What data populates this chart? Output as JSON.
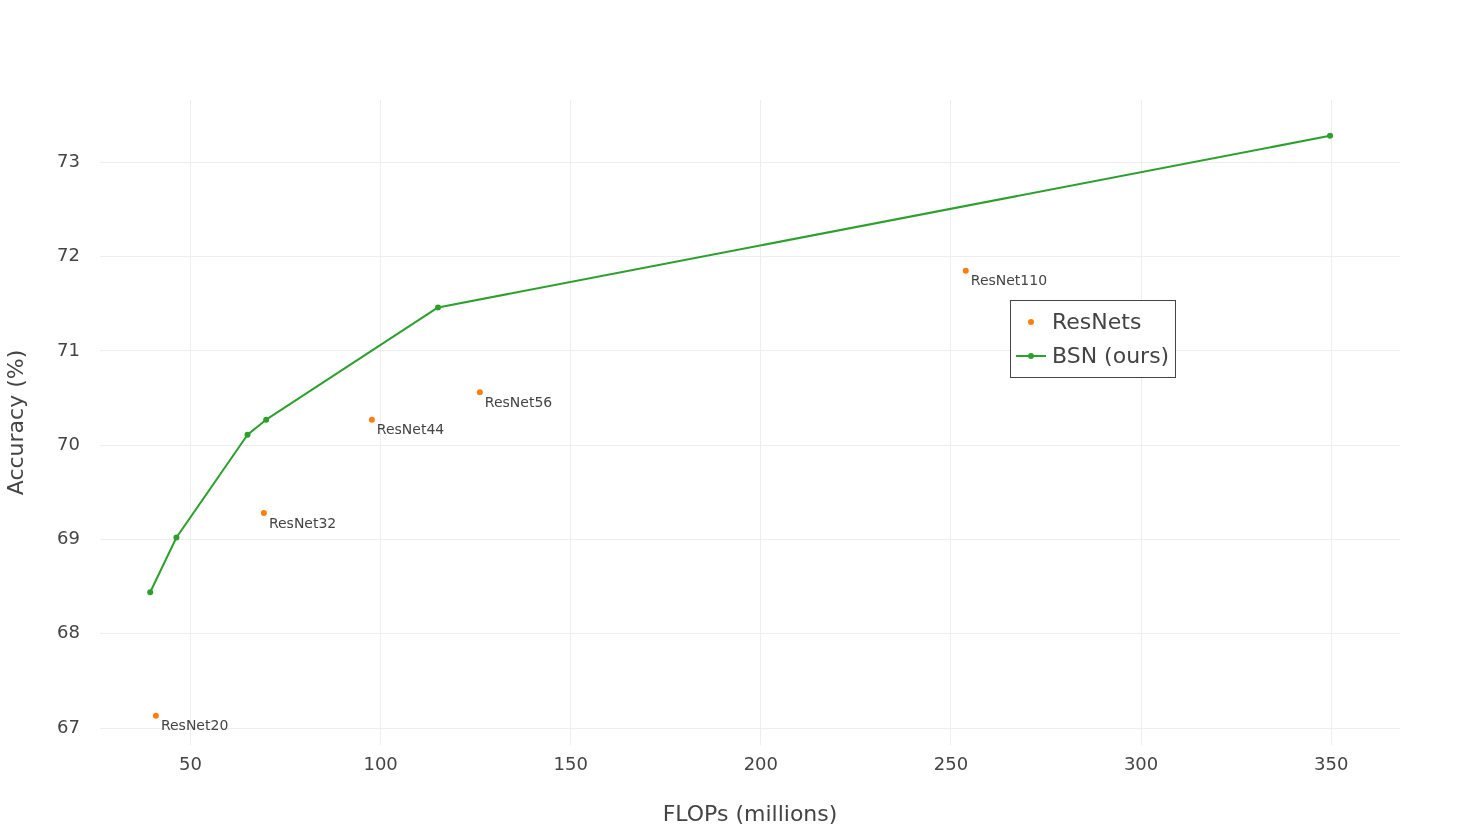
{
  "chart_data": {
    "type": "line",
    "xlabel": "FLOPs (millions)",
    "ylabel": "Accuracy (%)",
    "xlim": [
      26.2,
      368.1
    ],
    "ylim": [
      66.82,
      73.66
    ],
    "xticks": [
      50,
      100,
      150,
      200,
      250,
      300,
      350
    ],
    "yticks": [
      67,
      68,
      69,
      70,
      71,
      72,
      73
    ],
    "series": [
      {
        "name": "ResNets",
        "type": "scatter",
        "color": "#ff7f0e",
        "x": [
          40.9,
          69.3,
          97.7,
          126.1,
          253.9
        ],
        "values": [
          67.13,
          69.28,
          70.27,
          70.56,
          71.85
        ]
      },
      {
        "name": "BSN (ours)",
        "type": "line",
        "color": "#2ca02c",
        "x": [
          39.4,
          46.3,
          65.0,
          69.9,
          115.1,
          349.7
        ],
        "values": [
          68.44,
          69.02,
          70.11,
          70.27,
          71.46,
          73.28
        ]
      }
    ],
    "annotations": [
      {
        "text": "ResNet20",
        "x": 40.9,
        "y": 67.13
      },
      {
        "text": "ResNet32",
        "x": 69.3,
        "y": 69.28
      },
      {
        "text": "ResNet44",
        "x": 97.7,
        "y": 70.27
      },
      {
        "text": "ResNet56",
        "x": 126.1,
        "y": 70.56
      },
      {
        "text": "ResNet110",
        "x": 253.9,
        "y": 71.85
      }
    ],
    "grid": true,
    "legend": "right",
    "marker": "circle"
  }
}
